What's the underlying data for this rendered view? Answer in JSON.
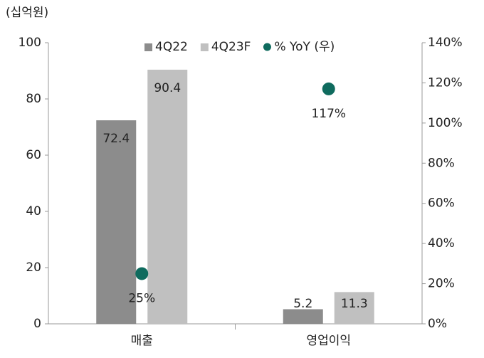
{
  "chart_data": {
    "type": "bar",
    "unit_label": "(십억원)",
    "categories": [
      "매출",
      "영업이익"
    ],
    "series": [
      {
        "name": "4Q22",
        "color": "#8c8c8c",
        "values": [
          72.4,
          5.2
        ]
      },
      {
        "name": "4Q23F",
        "color": "#c0c0c0",
        "values": [
          90.4,
          11.3
        ]
      },
      {
        "name": "% YoY (우)",
        "color": "#0f6b5e",
        "axis": "y2",
        "type": "scatter",
        "values": [
          25,
          117
        ],
        "value_labels": [
          "25%",
          "117%"
        ]
      }
    ],
    "ylim": [
      0,
      100
    ],
    "yticks": [
      0,
      20,
      40,
      60,
      80,
      100
    ],
    "y2lim": [
      0,
      140
    ],
    "y2ticks": [
      {
        "value": 0,
        "label": "0%"
      },
      {
        "value": 20,
        "label": "20%"
      },
      {
        "value": 40,
        "label": "40%"
      },
      {
        "value": 60,
        "label": "60%"
      },
      {
        "value": 80,
        "label": "80%"
      },
      {
        "value": 100,
        "label": "100%"
      },
      {
        "value": 120,
        "label": "120%"
      },
      {
        "value": 140,
        "label": "140%"
      }
    ],
    "grid": false
  }
}
